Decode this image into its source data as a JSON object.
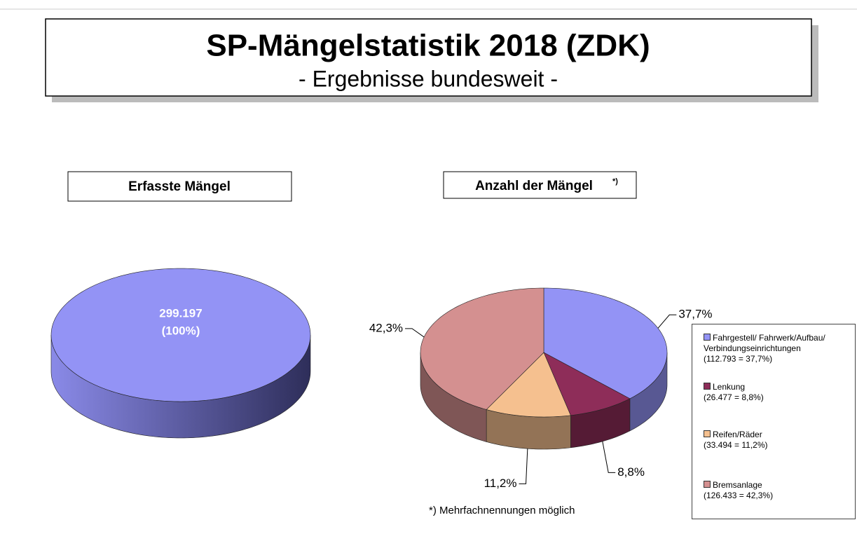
{
  "header": {
    "title": "SP-Mängelstatistik 2018 (ZDK)",
    "subtitle": "- Ergebnisse bundesweit -"
  },
  "chart_data": [
    {
      "type": "pie",
      "title": "Erfasste Mängel",
      "categories": [
        "Erfasste Mängel"
      ],
      "values": [
        299197
      ],
      "value_labels": [
        "299.197"
      ],
      "share_labels": [
        "(100%)"
      ],
      "colors": [
        "#9393f5"
      ]
    },
    {
      "type": "pie",
      "title": "Anzahl der Mängel",
      "title_note": "*)",
      "categories": [
        "Fahrgestell/ Fahrwerk/Aufbau/ Verbindungseinrichtungen",
        "Lenkung",
        "Reifen/Räder",
        "Bremsanlage"
      ],
      "legend_details": [
        "(112.793 = 37,7%)",
        "(26.477 = 8,8%)",
        "(33.494 = 11,2%)",
        "(126.433 = 42,3%)"
      ],
      "values": [
        37.7,
        8.8,
        11.2,
        42.3
      ],
      "value_labels": [
        "37,7%",
        "8,8%",
        "11,2%",
        "42,3%"
      ],
      "colors": [
        "#9393f5",
        "#8e2d59",
        "#f5c08f",
        "#d49090"
      ],
      "legend": "right"
    }
  ],
  "footnote": "*) Mehrfachnennungen möglich"
}
